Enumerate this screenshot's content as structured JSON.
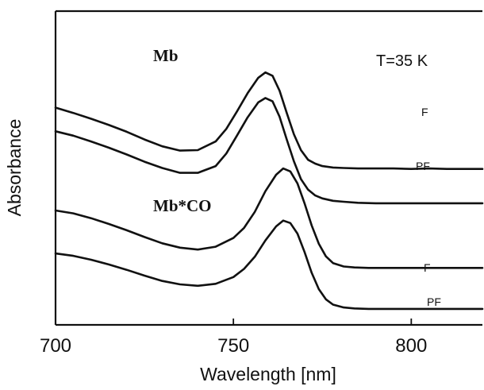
{
  "chart_data": {
    "type": "line",
    "xlabel": "Wavelength [nm]",
    "ylabel": "Absorbance",
    "xlim": [
      700,
      820
    ],
    "x_ticks": [
      "700",
      "750",
      "800"
    ],
    "grid": false,
    "annotations": {
      "temperature": "T=35 K",
      "group_top": "Mb",
      "group_bottom": "Mb*CO"
    },
    "series": [
      {
        "name": "F",
        "group": "Mb",
        "x": [
          700,
          705,
          710,
          715,
          720,
          725,
          730,
          735,
          740,
          745,
          748,
          751,
          754,
          757,
          759,
          761,
          763,
          765,
          767,
          769,
          771,
          773,
          775,
          778,
          781,
          785,
          790,
          795,
          800,
          805,
          810,
          815,
          820
        ],
        "y": [
          0.7,
          0.689,
          0.677,
          0.664,
          0.65,
          0.634,
          0.62,
          0.611,
          0.612,
          0.63,
          0.656,
          0.692,
          0.73,
          0.762,
          0.773,
          0.766,
          0.735,
          0.689,
          0.645,
          0.612,
          0.592,
          0.584,
          0.579,
          0.576,
          0.575,
          0.574,
          0.574,
          0.574,
          0.573,
          0.574,
          0.573,
          0.573,
          0.573
        ]
      },
      {
        "name": "PF",
        "group": "Mb",
        "x": [
          700,
          705,
          710,
          715,
          720,
          725,
          730,
          735,
          740,
          745,
          748,
          751,
          754,
          757,
          759,
          761,
          763,
          765,
          767,
          769,
          771,
          773,
          775,
          778,
          781,
          785,
          790,
          795,
          800,
          805,
          810,
          815,
          820
        ],
        "y": [
          0.651,
          0.642,
          0.63,
          0.617,
          0.603,
          0.588,
          0.575,
          0.565,
          0.565,
          0.579,
          0.605,
          0.642,
          0.68,
          0.711,
          0.72,
          0.713,
          0.681,
          0.634,
          0.589,
          0.552,
          0.53,
          0.518,
          0.512,
          0.507,
          0.505,
          0.503,
          0.502,
          0.502,
          0.502,
          0.502,
          0.502,
          0.502,
          0.502
        ]
      },
      {
        "name": "F",
        "group": "Mb*CO",
        "x": [
          700,
          705,
          710,
          715,
          720,
          725,
          730,
          735,
          740,
          745,
          750,
          753,
          756,
          759,
          762,
          764,
          766,
          768,
          770,
          772,
          774,
          776,
          778,
          781,
          784,
          788,
          792,
          796,
          800,
          805,
          810,
          815,
          820
        ],
        "y": [
          0.487,
          0.481,
          0.471,
          0.459,
          0.446,
          0.432,
          0.419,
          0.41,
          0.406,
          0.412,
          0.43,
          0.451,
          0.484,
          0.527,
          0.561,
          0.574,
          0.568,
          0.543,
          0.502,
          0.456,
          0.418,
          0.392,
          0.378,
          0.371,
          0.369,
          0.368,
          0.368,
          0.368,
          0.368,
          0.368,
          0.368,
          0.368,
          0.368
        ]
      },
      {
        "name": "PF",
        "group": "Mb*CO",
        "x": [
          700,
          705,
          710,
          715,
          720,
          725,
          730,
          735,
          740,
          745,
          750,
          753,
          756,
          759,
          762,
          764,
          766,
          768,
          770,
          772,
          774,
          776,
          778,
          781,
          784,
          788,
          792,
          796,
          800,
          805,
          810,
          815,
          820
        ],
        "y": [
          0.398,
          0.393,
          0.385,
          0.375,
          0.364,
          0.352,
          0.341,
          0.334,
          0.331,
          0.335,
          0.349,
          0.366,
          0.391,
          0.425,
          0.454,
          0.466,
          0.461,
          0.439,
          0.401,
          0.358,
          0.324,
          0.303,
          0.292,
          0.286,
          0.284,
          0.283,
          0.283,
          0.283,
          0.283,
          0.283,
          0.283,
          0.283,
          0.283
        ]
      }
    ],
    "ylim": [
      0.25,
      0.9
    ]
  }
}
